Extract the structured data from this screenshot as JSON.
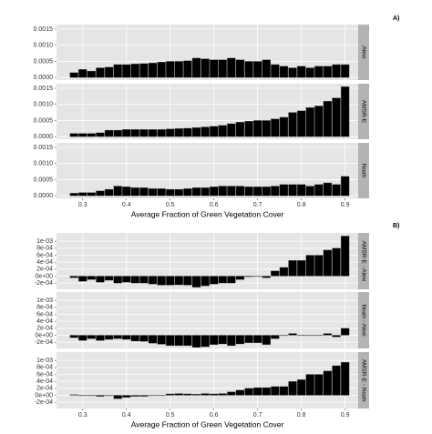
{
  "chart_data": [
    {
      "type": "bar",
      "label": "A)",
      "x_label": "Average Fraction of Green Vegetation Cover",
      "color": "#000000",
      "grid": true,
      "x": [
        0.28,
        0.3,
        0.32,
        0.34,
        0.36,
        0.38,
        0.4,
        0.42,
        0.44,
        0.46,
        0.48,
        0.5,
        0.52,
        0.54,
        0.56,
        0.58,
        0.6,
        0.62,
        0.64,
        0.66,
        0.68,
        0.7,
        0.72,
        0.74,
        0.76,
        0.78,
        0.8,
        0.82,
        0.84,
        0.86,
        0.88,
        0.9
      ],
      "xlim": [
        0.24,
        0.93
      ],
      "xticks": [
        0.3,
        0.4,
        0.5,
        0.6,
        0.7,
        0.8,
        0.9
      ],
      "ylim": [
        -8e-05,
        0.00164
      ],
      "yticks": [
        {
          "value": 0,
          "label": "0.0000"
        },
        {
          "value": 0.0005,
          "label": "0.0005"
        },
        {
          "value": 0.001,
          "label": "0.0010"
        },
        {
          "value": 0.0015,
          "label": "0.0015"
        }
      ],
      "series": [
        {
          "name": "Alexi",
          "values": [
            0.00015,
            0.00025,
            0.0002,
            0.0003,
            0.00032,
            0.0004,
            0.0004,
            0.00042,
            0.00043,
            0.00045,
            0.00048,
            0.0005,
            0.0005,
            0.00052,
            0.0006,
            0.00058,
            0.00055,
            0.00055,
            0.0006,
            0.00055,
            0.0005,
            0.0005,
            0.00055,
            0.0004,
            0.00035,
            0.0003,
            0.00035,
            0.0003,
            0.00035,
            0.00035,
            0.0004,
            0.0004
          ]
        },
        {
          "name": "AMSR-E",
          "values": [
            0.0001,
            0.0001,
            0.0001,
            0.00012,
            0.0002,
            0.0002,
            0.00022,
            0.00022,
            0.00022,
            0.00022,
            0.00022,
            0.00024,
            0.00025,
            0.00026,
            0.00028,
            0.0003,
            0.00032,
            0.00035,
            0.0004,
            0.00045,
            0.00048,
            0.0005,
            0.0005,
            0.00055,
            0.0006,
            0.00075,
            0.0008,
            0.0009,
            0.00095,
            0.0011,
            0.0012,
            0.00155
          ]
        },
        {
          "name": "Noah",
          "values": [
            8e-05,
            0.0001,
            0.0001,
            0.00015,
            0.0002,
            0.0003,
            0.00028,
            0.00025,
            0.00025,
            0.00022,
            0.00022,
            0.0002,
            0.0002,
            0.00022,
            0.00025,
            0.00025,
            0.00028,
            0.0003,
            0.0003,
            0.0003,
            0.00028,
            0.00028,
            0.00028,
            0.0003,
            0.00035,
            0.00035,
            0.00035,
            0.0003,
            0.00035,
            0.0004,
            0.00035,
            0.0006
          ]
        }
      ]
    },
    {
      "type": "bar",
      "label": "B)",
      "x_label": "Average Fraction of Green Vegetation Cover",
      "color": "#000000",
      "grid": true,
      "x": [
        0.28,
        0.3,
        0.32,
        0.34,
        0.36,
        0.38,
        0.4,
        0.42,
        0.44,
        0.46,
        0.48,
        0.5,
        0.52,
        0.54,
        0.56,
        0.58,
        0.6,
        0.62,
        0.64,
        0.66,
        0.68,
        0.7,
        0.72,
        0.74,
        0.76,
        0.78,
        0.8,
        0.82,
        0.84,
        0.86,
        0.88,
        0.9
      ],
      "xlim": [
        0.24,
        0.93
      ],
      "xticks": [
        0.3,
        0.4,
        0.5,
        0.6,
        0.7,
        0.8,
        0.9
      ],
      "ylim": [
        -0.00038,
        0.00124
      ],
      "yticks": [
        {
          "value": -0.0002,
          "label": "-2e-04"
        },
        {
          "value": 0,
          "label": "0e+00"
        },
        {
          "value": 0.0002,
          "label": "2e-04"
        },
        {
          "value": 0.0004,
          "label": "4e-04"
        },
        {
          "value": 0.0006,
          "label": "6e-04"
        },
        {
          "value": 0.0008,
          "label": "8e-04"
        },
        {
          "value": 0.001,
          "label": "1e-03"
        }
      ],
      "series": [
        {
          "name": "AMSR-E - Alexi",
          "values": [
            -5e-05,
            -0.00015,
            -0.0001,
            -0.00018,
            -0.00012,
            -0.0002,
            -0.00018,
            -0.0002,
            -0.0002,
            -0.00023,
            -0.00026,
            -0.00026,
            -0.00025,
            -0.00026,
            -0.00032,
            -0.00028,
            -0.00023,
            -0.0002,
            -0.0002,
            -0.0001,
            -2e-05,
            0,
            -5e-05,
            0.00015,
            0.00025,
            0.00045,
            0.00045,
            0.0006,
            0.0006,
            0.00075,
            0.0008,
            0.00115
          ]
        },
        {
          "name": "Noah - Alexi",
          "values": [
            -7e-05,
            -0.00015,
            -0.0001,
            -0.00015,
            -0.00012,
            -0.0001,
            -0.00012,
            -0.00017,
            -0.00018,
            -0.00023,
            -0.00026,
            -0.0003,
            -0.0003,
            -0.0003,
            -0.00035,
            -0.00033,
            -0.00027,
            -0.00025,
            -0.0003,
            -0.00025,
            -0.00022,
            -0.00022,
            -0.00027,
            -0.0001,
            0,
            5e-05,
            0,
            0,
            0,
            5e-05,
            -5e-05,
            0.0002
          ]
        },
        {
          "name": "AMSR-E - Noah",
          "values": [
            2e-05,
            0,
            0,
            -3e-05,
            0,
            -0.0001,
            -6e-05,
            -3e-05,
            -3e-05,
            0,
            0,
            4e-05,
            5e-05,
            4e-05,
            3e-05,
            5e-05,
            4e-05,
            5e-05,
            0.0001,
            0.00015,
            0.0002,
            0.00022,
            0.00022,
            0.00025,
            0.00025,
            0.0004,
            0.00045,
            0.0006,
            0.0006,
            0.0007,
            0.00085,
            0.00095
          ]
        }
      ]
    }
  ]
}
